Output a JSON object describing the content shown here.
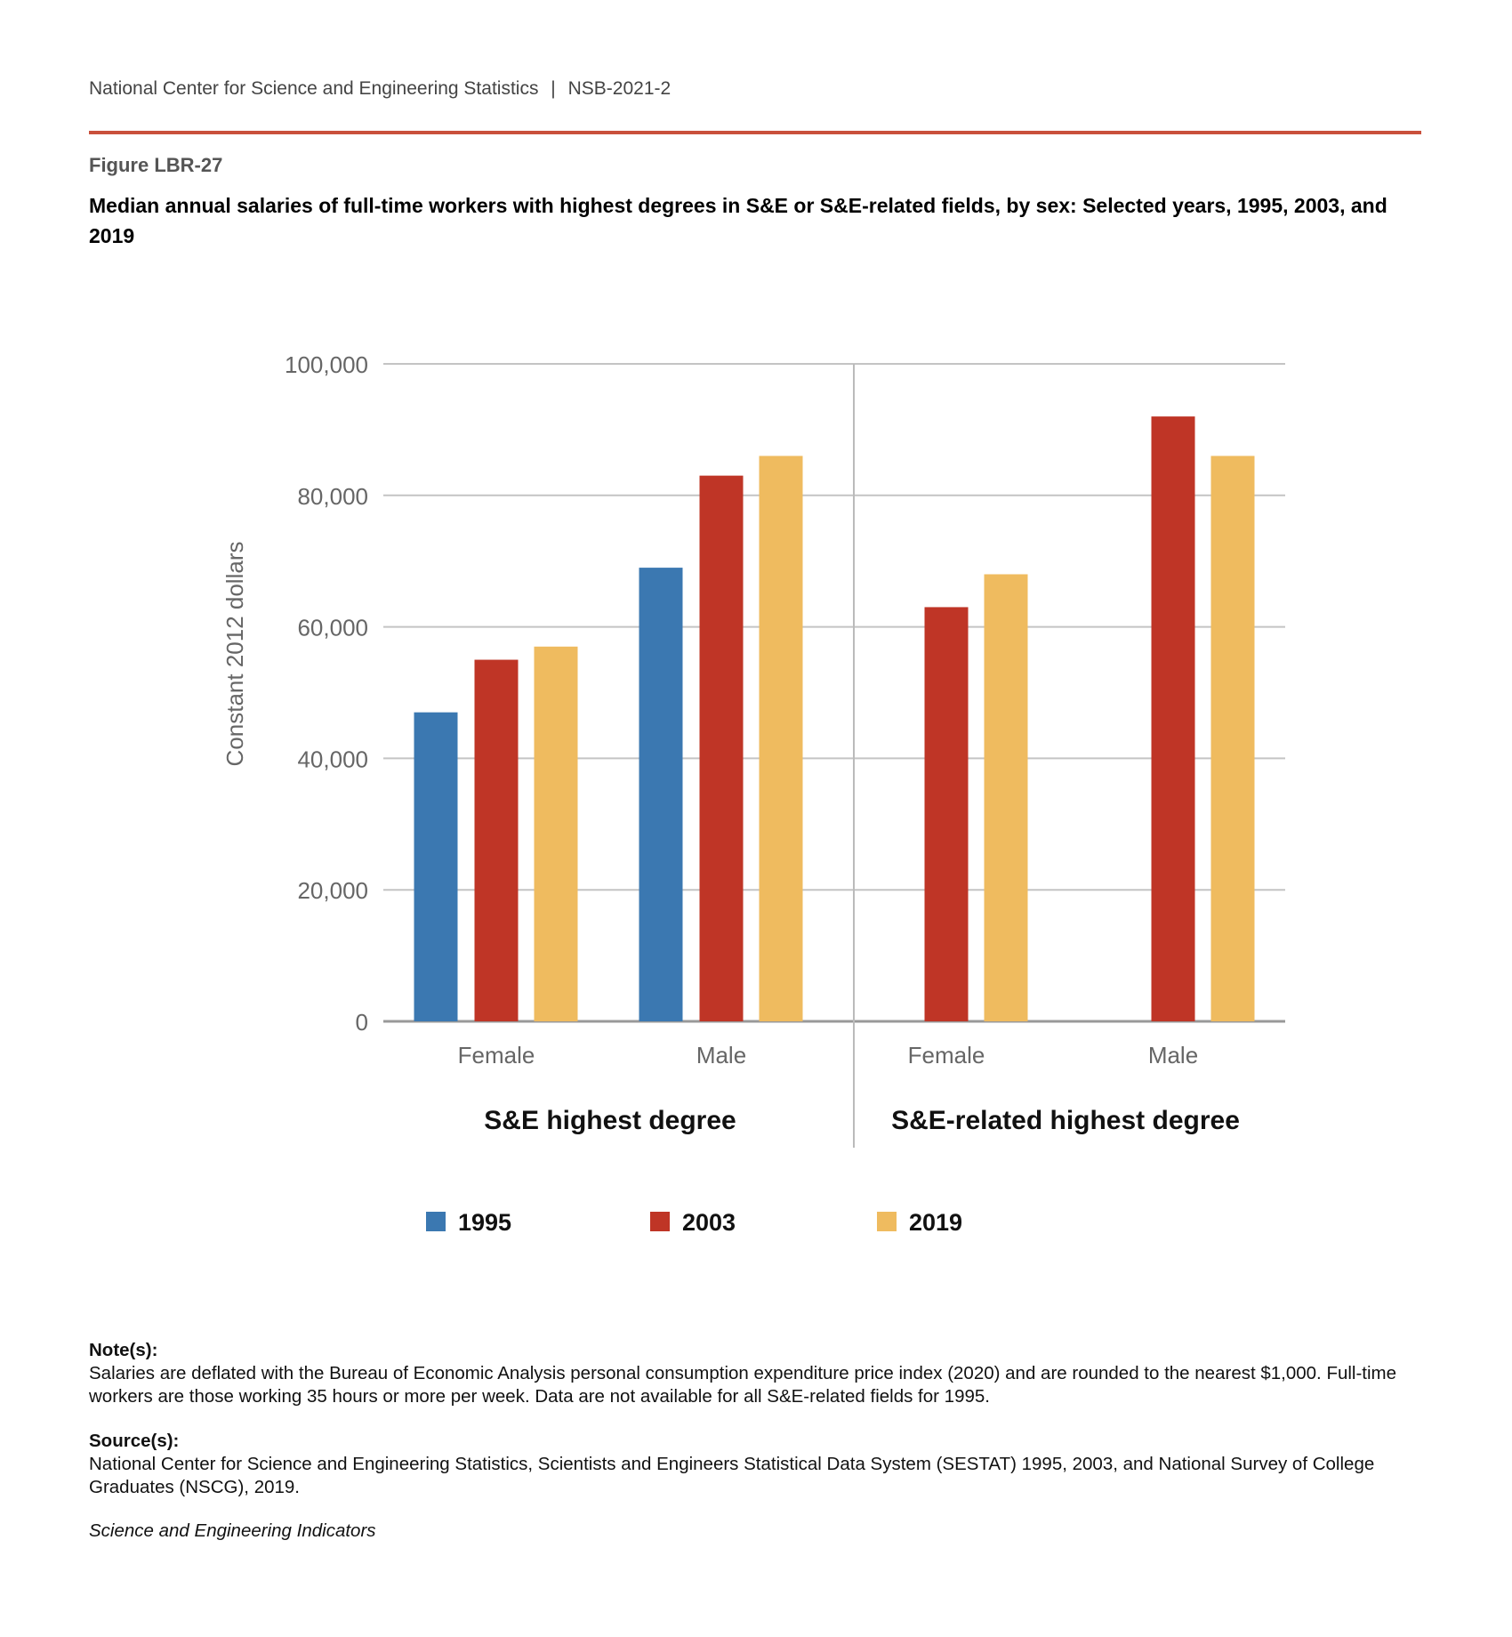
{
  "header": {
    "org": "National Center for Science and Engineering Statistics",
    "separator": "|",
    "report": "NSB-2021-2"
  },
  "figure_label": "Figure LBR-27",
  "title": "Median annual salaries of full-time workers with highest degrees in S&E or S&E-related fields, by sex: Selected years, 1995, 2003, and 2019",
  "chart_data": {
    "type": "bar",
    "ylabel": "Constant 2012 dollars",
    "ylim": [
      0,
      100000
    ],
    "yticks": [
      "0",
      "20,000",
      "40,000",
      "60,000",
      "80,000",
      "100,000"
    ],
    "ytick_values": [
      0,
      20000,
      40000,
      60000,
      80000,
      100000
    ],
    "groups": [
      "S&E highest degree",
      "S&E-related highest degree"
    ],
    "categories": [
      "Female",
      "Male",
      "Female",
      "Male"
    ],
    "category_group": [
      0,
      0,
      1,
      1
    ],
    "series": [
      {
        "name": "1995",
        "color": "#3b78b1",
        "values": [
          47000,
          69000,
          null,
          null
        ]
      },
      {
        "name": "2003",
        "color": "#bf3526",
        "values": [
          55000,
          83000,
          63000,
          92000
        ]
      },
      {
        "name": "2019",
        "color": "#efbb5f",
        "values": [
          57000,
          86000,
          68000,
          86000
        ]
      }
    ],
    "legend_position": "bottom"
  },
  "notes": {
    "note_label": "Note(s):",
    "note_text": "Salaries are deflated with the Bureau of Economic Analysis personal consumption expenditure price index (2020) and are rounded to the nearest $1,000. Full-time workers are those working 35 hours or more per week. Data are not available for all S&E-related fields for 1995.",
    "source_label": "Source(s):",
    "source_text": "National Center for Science and Engineering Statistics, Scientists and Engineers Statistical Data System (SESTAT) 1995, 2003, and National Survey of College Graduates (NSCG), 2019.",
    "publication": "Science and Engineering Indicators"
  }
}
